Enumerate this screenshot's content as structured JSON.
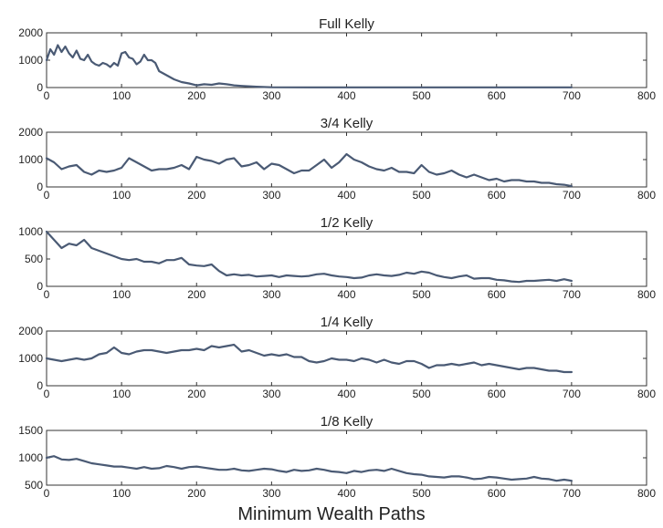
{
  "figure": {
    "xlabel": "Minimum Wealth Paths",
    "line_color": "#4a5a74"
  },
  "chart_data": [
    {
      "type": "line",
      "title": "Full Kelly",
      "xlim": [
        0,
        800
      ],
      "ylim": [
        0,
        2000
      ],
      "xticks": [
        0,
        100,
        200,
        300,
        400,
        500,
        600,
        700,
        800
      ],
      "yticks": [
        0,
        1000,
        2000
      ],
      "grid": false,
      "x": [
        0,
        5,
        10,
        15,
        20,
        25,
        30,
        35,
        40,
        45,
        50,
        55,
        60,
        65,
        70,
        75,
        80,
        85,
        90,
        95,
        100,
        105,
        110,
        115,
        120,
        125,
        130,
        135,
        140,
        145,
        150,
        160,
        170,
        180,
        190,
        200,
        210,
        220,
        230,
        240,
        250,
        260,
        280,
        300,
        350,
        400,
        450,
        500,
        550,
        600,
        650,
        700
      ],
      "series": [
        {
          "values": [
            1000,
            1400,
            1200,
            1550,
            1300,
            1500,
            1250,
            1100,
            1350,
            1050,
            1000,
            1200,
            950,
            850,
            800,
            900,
            850,
            750,
            900,
            800,
            1250,
            1300,
            1100,
            1050,
            850,
            950,
            1200,
            1000,
            1000,
            900,
            600,
            450,
            300,
            200,
            150,
            80,
            120,
            100,
            150,
            120,
            80,
            60,
            30,
            10,
            5,
            5,
            5,
            5,
            5,
            5,
            5,
            5
          ]
        }
      ]
    },
    {
      "type": "line",
      "title": "3/4 Kelly",
      "xlim": [
        0,
        800
      ],
      "ylim": [
        0,
        2000
      ],
      "xticks": [
        0,
        100,
        200,
        300,
        400,
        500,
        600,
        700,
        800
      ],
      "yticks": [
        0,
        1000,
        2000
      ],
      "grid": false,
      "x": [
        0,
        10,
        20,
        30,
        40,
        50,
        60,
        70,
        80,
        90,
        100,
        110,
        120,
        130,
        140,
        150,
        160,
        170,
        180,
        190,
        200,
        210,
        220,
        230,
        240,
        250,
        260,
        270,
        280,
        290,
        300,
        310,
        320,
        330,
        340,
        350,
        360,
        370,
        380,
        390,
        400,
        410,
        420,
        430,
        440,
        450,
        460,
        470,
        480,
        490,
        500,
        510,
        520,
        530,
        540,
        550,
        560,
        570,
        580,
        590,
        600,
        610,
        620,
        630,
        640,
        650,
        660,
        670,
        680,
        690,
        700
      ],
      "series": [
        {
          "values": [
            1050,
            900,
            650,
            750,
            800,
            550,
            450,
            600,
            550,
            600,
            700,
            1050,
            900,
            750,
            600,
            650,
            650,
            700,
            800,
            650,
            1100,
            1000,
            950,
            850,
            1000,
            1050,
            750,
            800,
            900,
            650,
            850,
            800,
            650,
            500,
            600,
            600,
            800,
            1000,
            700,
            900,
            1200,
            1000,
            900,
            750,
            650,
            600,
            700,
            550,
            550,
            500,
            800,
            550,
            450,
            500,
            600,
            450,
            350,
            450,
            350,
            250,
            300,
            200,
            250,
            250,
            200,
            200,
            150,
            150,
            100,
            80,
            30
          ]
        }
      ]
    },
    {
      "type": "line",
      "title": "1/2 Kelly",
      "xlim": [
        0,
        800
      ],
      "ylim": [
        0,
        1000
      ],
      "xticks": [
        0,
        100,
        200,
        300,
        400,
        500,
        600,
        700,
        800
      ],
      "yticks": [
        0,
        500,
        1000
      ],
      "grid": false,
      "x": [
        0,
        10,
        20,
        30,
        40,
        50,
        60,
        70,
        80,
        90,
        100,
        110,
        120,
        130,
        140,
        150,
        160,
        170,
        180,
        190,
        200,
        210,
        220,
        230,
        240,
        250,
        260,
        270,
        280,
        290,
        300,
        310,
        320,
        330,
        340,
        350,
        360,
        370,
        380,
        390,
        400,
        410,
        420,
        430,
        440,
        450,
        460,
        470,
        480,
        490,
        500,
        510,
        520,
        530,
        540,
        550,
        560,
        570,
        580,
        590,
        600,
        610,
        620,
        630,
        640,
        650,
        660,
        670,
        680,
        690,
        700
      ],
      "series": [
        {
          "values": [
            1000,
            850,
            700,
            780,
            750,
            850,
            700,
            650,
            600,
            550,
            500,
            480,
            500,
            450,
            450,
            420,
            480,
            480,
            520,
            400,
            380,
            370,
            400,
            280,
            200,
            220,
            200,
            210,
            180,
            190,
            200,
            170,
            200,
            190,
            180,
            190,
            220,
            230,
            200,
            180,
            170,
            150,
            160,
            200,
            220,
            200,
            190,
            210,
            250,
            230,
            270,
            250,
            200,
            170,
            150,
            180,
            200,
            140,
            150,
            150,
            120,
            110,
            90,
            80,
            100,
            100,
            110,
            120,
            100,
            130,
            100
          ]
        }
      ]
    },
    {
      "type": "line",
      "title": "1/4 Kelly",
      "xlim": [
        0,
        800
      ],
      "ylim": [
        0,
        2000
      ],
      "xticks": [
        0,
        100,
        200,
        300,
        400,
        500,
        600,
        700,
        800
      ],
      "yticks": [
        0,
        1000,
        2000
      ],
      "grid": false,
      "x": [
        0,
        10,
        20,
        30,
        40,
        50,
        60,
        70,
        80,
        90,
        100,
        110,
        120,
        130,
        140,
        150,
        160,
        170,
        180,
        190,
        200,
        210,
        220,
        230,
        240,
        250,
        260,
        270,
        280,
        290,
        300,
        310,
        320,
        330,
        340,
        350,
        360,
        370,
        380,
        390,
        400,
        410,
        420,
        430,
        440,
        450,
        460,
        470,
        480,
        490,
        500,
        510,
        520,
        530,
        540,
        550,
        560,
        570,
        580,
        590,
        600,
        610,
        620,
        630,
        640,
        650,
        660,
        670,
        680,
        690,
        700
      ],
      "series": [
        {
          "values": [
            1000,
            950,
            900,
            950,
            1000,
            950,
            1000,
            1150,
            1200,
            1400,
            1200,
            1150,
            1250,
            1300,
            1300,
            1250,
            1200,
            1250,
            1300,
            1300,
            1350,
            1300,
            1450,
            1400,
            1450,
            1500,
            1250,
            1300,
            1200,
            1100,
            1150,
            1100,
            1150,
            1050,
            1050,
            900,
            850,
            900,
            1000,
            950,
            950,
            900,
            1000,
            950,
            850,
            950,
            850,
            800,
            900,
            900,
            800,
            650,
            750,
            750,
            800,
            750,
            800,
            850,
            750,
            800,
            750,
            700,
            650,
            600,
            650,
            650,
            600,
            550,
            550,
            500,
            500
          ]
        }
      ]
    },
    {
      "type": "line",
      "title": "1/8 Kelly",
      "xlim": [
        0,
        800
      ],
      "ylim": [
        500,
        1500
      ],
      "xticks": [
        0,
        100,
        200,
        300,
        400,
        500,
        600,
        700,
        800
      ],
      "yticks": [
        500,
        1000,
        1500
      ],
      "grid": false,
      "x": [
        0,
        10,
        20,
        30,
        40,
        50,
        60,
        70,
        80,
        90,
        100,
        110,
        120,
        130,
        140,
        150,
        160,
        170,
        180,
        190,
        200,
        210,
        220,
        230,
        240,
        250,
        260,
        270,
        280,
        290,
        300,
        310,
        320,
        330,
        340,
        350,
        360,
        370,
        380,
        390,
        400,
        410,
        420,
        430,
        440,
        450,
        460,
        470,
        480,
        490,
        500,
        510,
        520,
        530,
        540,
        550,
        560,
        570,
        580,
        590,
        600,
        610,
        620,
        630,
        640,
        650,
        660,
        670,
        680,
        690,
        700
      ],
      "series": [
        {
          "values": [
            1000,
            1030,
            970,
            960,
            980,
            940,
            900,
            880,
            860,
            840,
            840,
            820,
            800,
            830,
            800,
            810,
            850,
            830,
            800,
            830,
            840,
            820,
            800,
            780,
            780,
            800,
            770,
            760,
            780,
            800,
            790,
            760,
            740,
            780,
            760,
            770,
            800,
            780,
            750,
            740,
            720,
            760,
            740,
            770,
            780,
            760,
            800,
            760,
            720,
            700,
            690,
            660,
            650,
            640,
            660,
            660,
            640,
            610,
            620,
            650,
            640,
            620,
            600,
            610,
            620,
            650,
            620,
            610,
            580,
            600,
            580
          ]
        }
      ]
    }
  ]
}
